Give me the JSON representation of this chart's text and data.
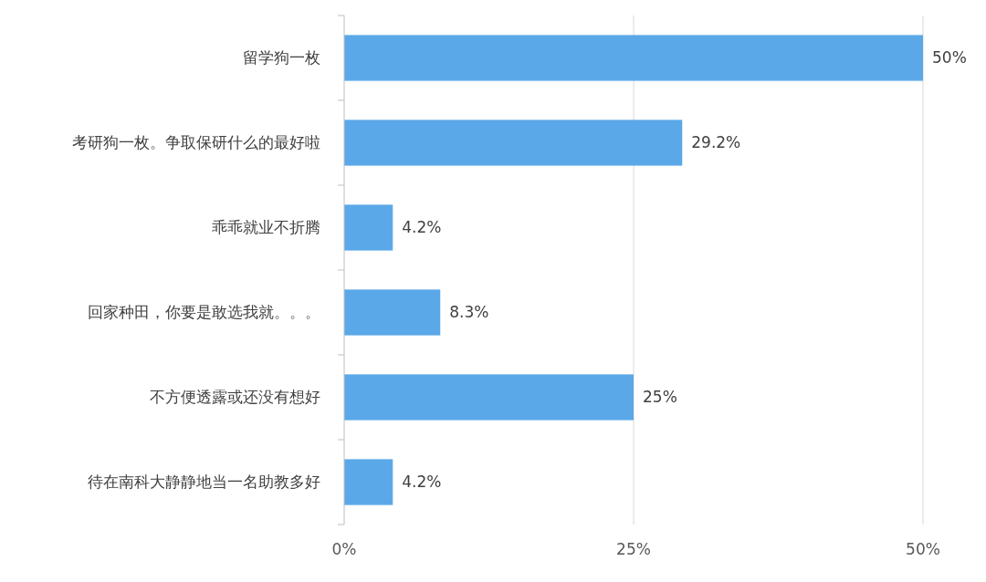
{
  "chart_data": {
    "type": "bar",
    "orientation": "horizontal",
    "categories": [
      "留学狗一枚",
      "考研狗一枚。争取保研什么的最好啦",
      "乖乖就业不折腾",
      "回家种田，你要是敢选我就。。。",
      "不方便透露或还没有想好",
      "待在南科大静静地当一名助教多好"
    ],
    "values": [
      50,
      29.2,
      4.2,
      8.3,
      25,
      4.2
    ],
    "value_labels": [
      "50%",
      "29.2%",
      "4.2%",
      "8.3%",
      "25%",
      "4.2%"
    ],
    "color": "#5ba8e8",
    "xlim": [
      0,
      50
    ],
    "xticks": [
      {
        "value": 0,
        "label": "0%"
      },
      {
        "value": 25,
        "label": "25%"
      },
      {
        "value": 50,
        "label": "50%"
      }
    ],
    "grid": "x"
  }
}
